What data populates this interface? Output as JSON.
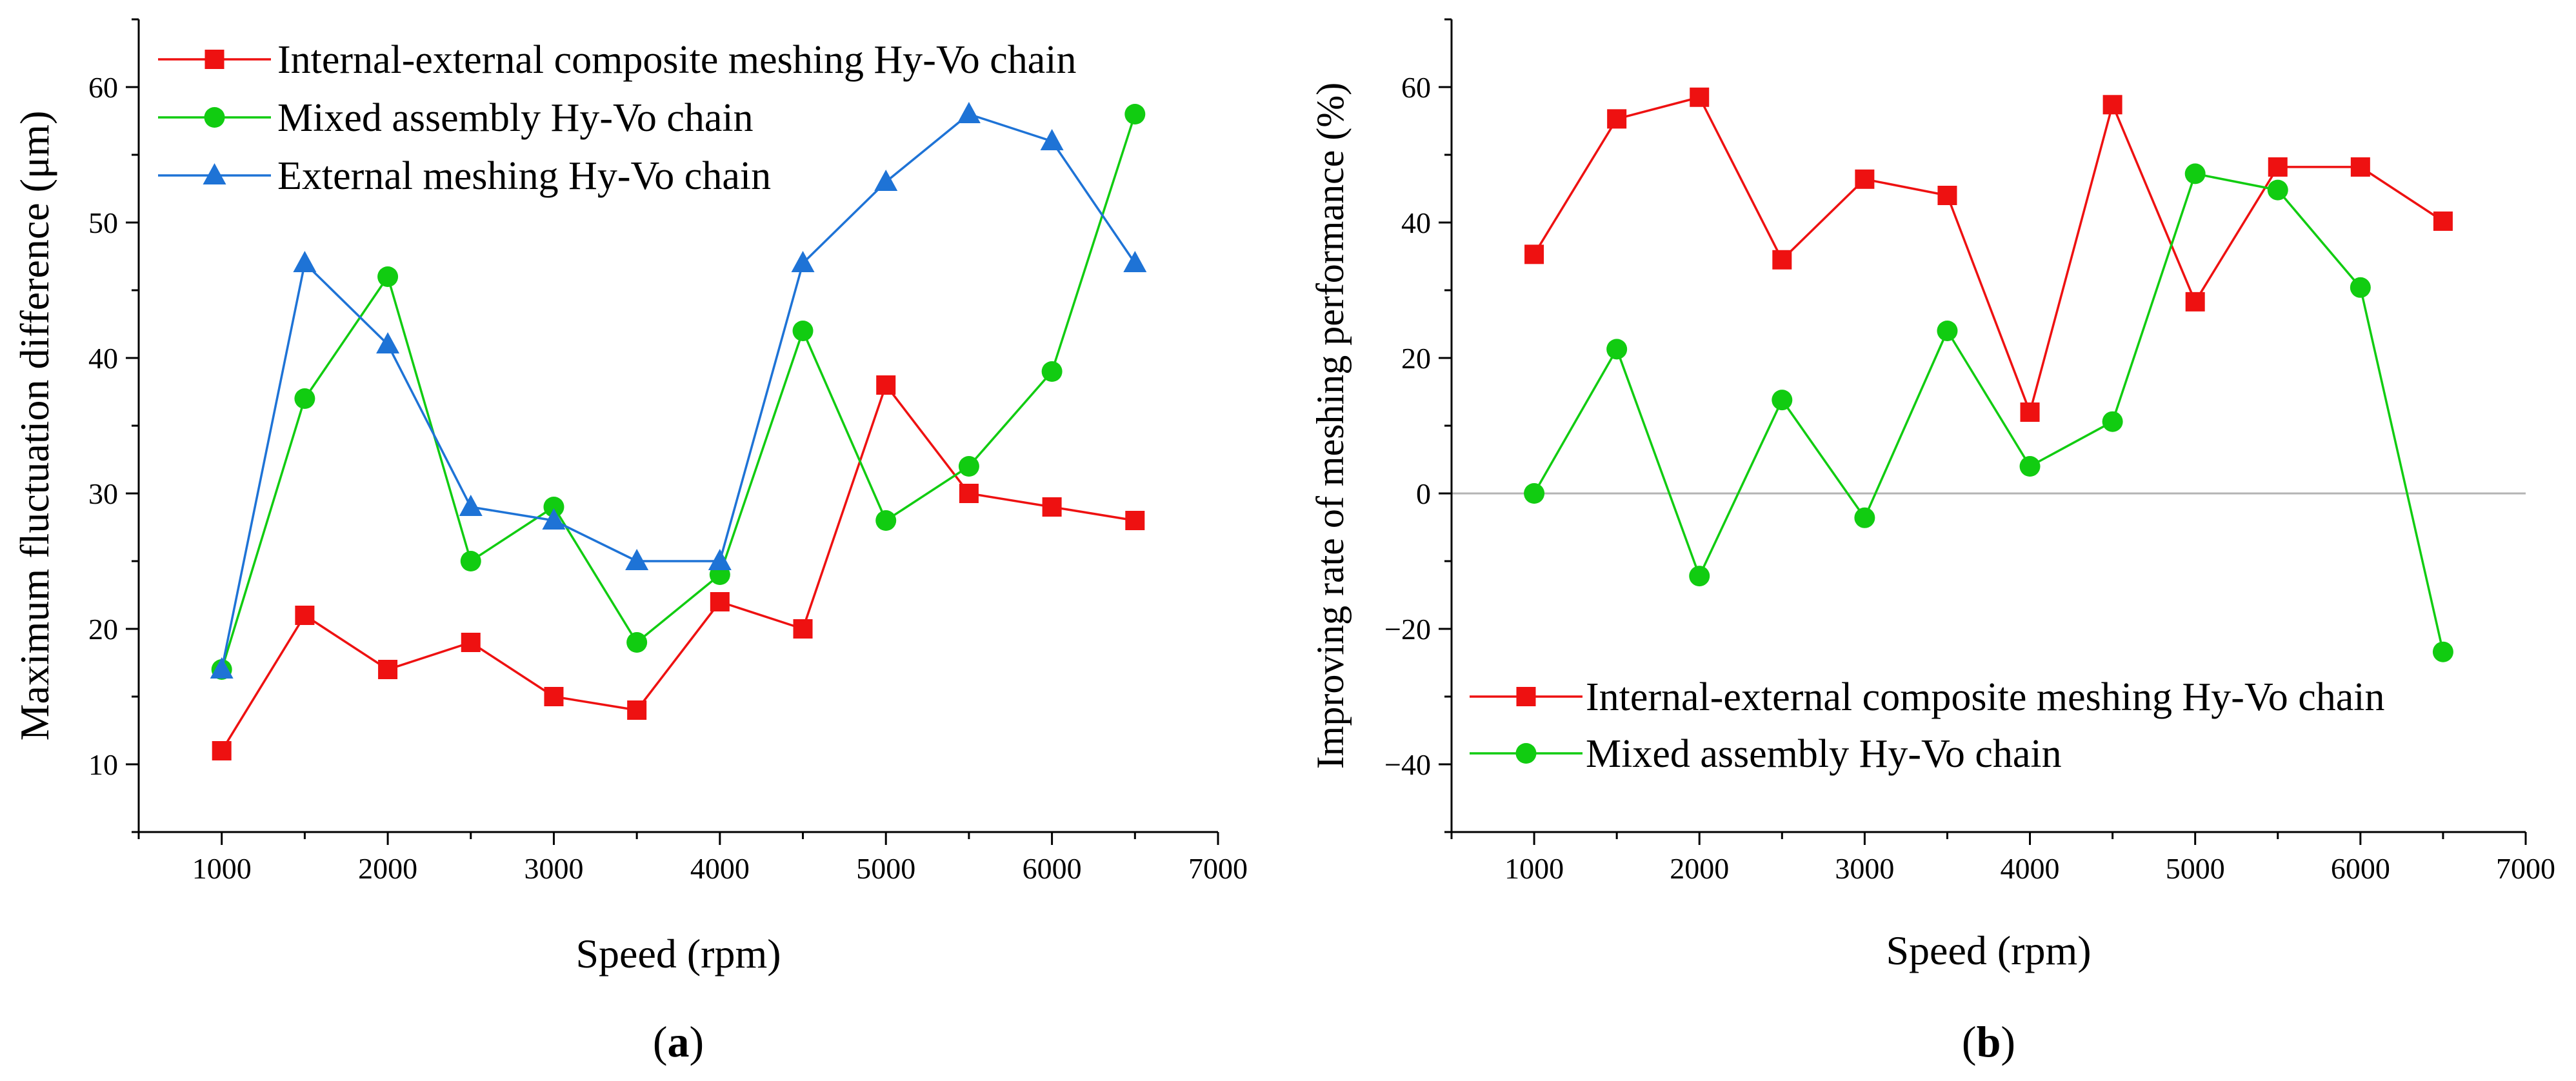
{
  "colors": {
    "red": "#ee1111",
    "green": "#11cc11",
    "blue": "#1e73d6",
    "zero_line": "#b4b4b4"
  },
  "chart_data": [
    {
      "type": "line",
      "panel": "a",
      "panel_label": {
        "open": "(",
        "letter": "a",
        "close": ")"
      },
      "xlabel": "Speed (rpm)",
      "ylabel": "Maximum fluctuation difference (μm)",
      "xlim": [
        500,
        7000
      ],
      "ylim": [
        5,
        65
      ],
      "xticks": [
        1000,
        2000,
        3000,
        4000,
        5000,
        6000,
        7000
      ],
      "xtick_labels": [
        "1000",
        "2000",
        "3000",
        "4000",
        "5000",
        "6000",
        "7000"
      ],
      "xminor": [
        500,
        1500,
        2500,
        3500,
        4500,
        5500,
        6500
      ],
      "yticks": [
        10,
        20,
        30,
        40,
        50,
        60
      ],
      "ytick_labels": [
        "10",
        "20",
        "30",
        "40",
        "50",
        "60"
      ],
      "yminor": [
        5,
        15,
        25,
        35,
        45,
        55,
        65
      ],
      "legend_position": "top-left",
      "x": [
        1000,
        1500,
        2000,
        2500,
        3000,
        3500,
        4000,
        4500,
        5000,
        5500,
        6000,
        6500
      ],
      "series": [
        {
          "name": "Internal-external composite meshing Hy-Vo chain",
          "marker": "square",
          "color": "red",
          "values": [
            11,
            21,
            17,
            19,
            15,
            14,
            22,
            20,
            38,
            30,
            29,
            28
          ]
        },
        {
          "name": "Mixed assembly Hy-Vo chain",
          "marker": "circle",
          "color": "green",
          "values": [
            17,
            37,
            46,
            25,
            29,
            19,
            24,
            42,
            28,
            32,
            39,
            58
          ]
        },
        {
          "name": "External meshing Hy-Vo chain",
          "marker": "triangle",
          "color": "blue",
          "values": [
            17,
            47,
            41,
            29,
            28,
            25,
            25,
            47,
            53,
            58,
            56,
            47
          ]
        }
      ]
    },
    {
      "type": "line",
      "panel": "b",
      "panel_label": {
        "open": "(",
        "letter": "b",
        "close": ")"
      },
      "xlabel": "Speed (rpm)",
      "ylabel": "Improving rate of meshing performance (%)",
      "xlim": [
        500,
        7000
      ],
      "ylim": [
        -50,
        70
      ],
      "xticks": [
        1000,
        2000,
        3000,
        4000,
        5000,
        6000,
        7000
      ],
      "xtick_labels": [
        "1000",
        "2000",
        "3000",
        "4000",
        "5000",
        "6000",
        "7000"
      ],
      "xminor": [
        500,
        1500,
        2500,
        3500,
        4500,
        5500,
        6500
      ],
      "yticks": [
        -40,
        -20,
        0,
        20,
        40,
        60
      ],
      "ytick_labels": [
        "−40",
        "−20",
        "0",
        "20",
        "40",
        "60"
      ],
      "yminor": [
        -50,
        -30,
        -10,
        10,
        30,
        50,
        70
      ],
      "zero_line": true,
      "legend_position": "bottom-left",
      "x": [
        1000,
        1500,
        2000,
        2500,
        3000,
        3500,
        4000,
        4500,
        5000,
        5500,
        6000,
        6500
      ],
      "series": [
        {
          "name": "Internal-external composite meshing Hy-Vo chain",
          "marker": "square",
          "color": "red",
          "values": [
            35.3,
            55.3,
            58.5,
            34.5,
            46.4,
            44.0,
            12.0,
            57.4,
            28.3,
            48.2,
            48.2,
            40.2
          ]
        },
        {
          "name": "Mixed assembly Hy-Vo chain",
          "marker": "circle",
          "color": "green",
          "values": [
            0.0,
            21.3,
            -12.2,
            13.8,
            -3.6,
            24.0,
            4.0,
            10.6,
            47.2,
            44.8,
            30.4,
            -23.4
          ]
        }
      ]
    }
  ]
}
